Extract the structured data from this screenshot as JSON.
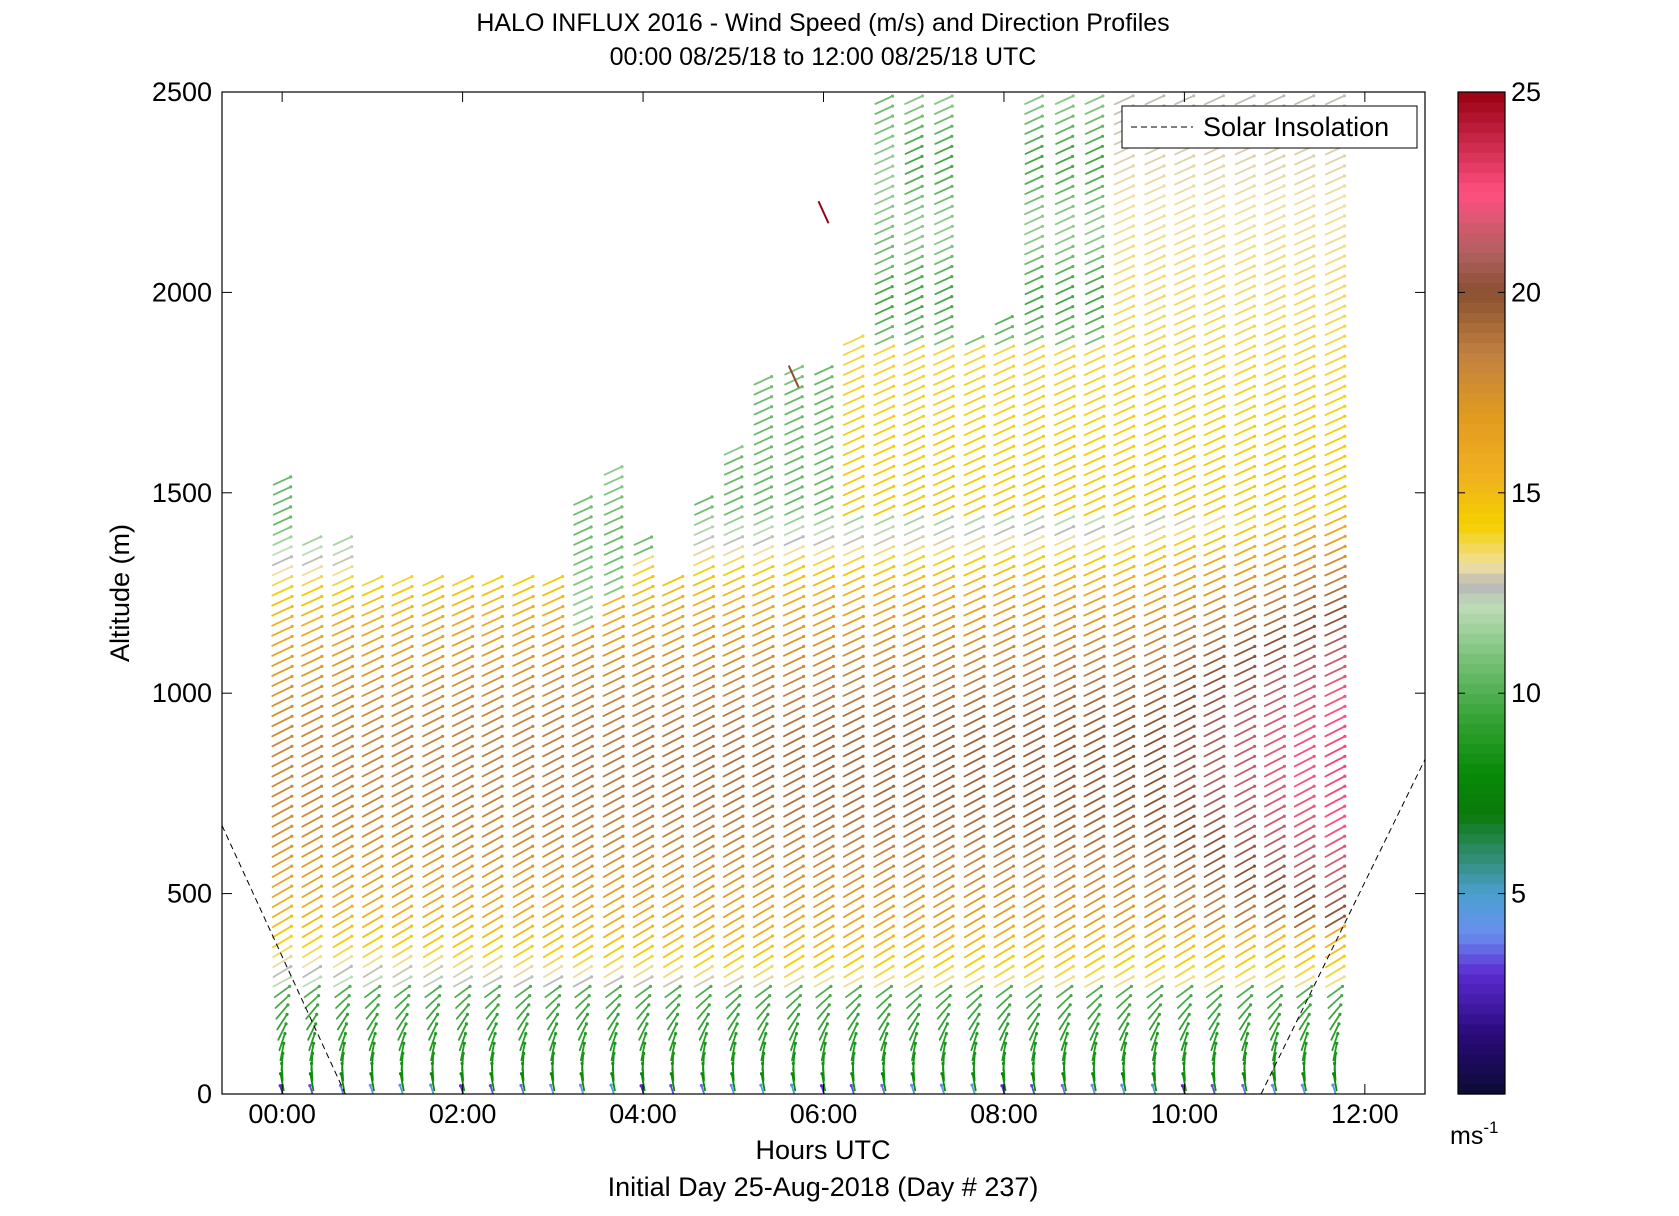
{
  "chart_data": {
    "type": "wind-barb-profile",
    "title": "HALO INFLUX 2016 - Wind Speed (m/s) and Direction Profiles",
    "subtitle": "00:00 08/25/18 to 12:00 08/25/18  UTC",
    "xlabel": "Hours UTC",
    "ylabel": "Altitude (m)",
    "footer": "Initial Day 25-Aug-2018 (Day # 237)",
    "xlim": [
      -0.6667,
      12.6667
    ],
    "ylim": [
      0,
      2500
    ],
    "x_ticks": [
      {
        "value": 0,
        "label": "00:00"
      },
      {
        "value": 2,
        "label": "02:00"
      },
      {
        "value": 4,
        "label": "04:00"
      },
      {
        "value": 6,
        "label": "06:00"
      },
      {
        "value": 8,
        "label": "08:00"
      },
      {
        "value": 10,
        "label": "10:00"
      },
      {
        "value": 12,
        "label": "12:00"
      }
    ],
    "y_ticks": [
      0,
      500,
      1000,
      1500,
      2000,
      2500
    ],
    "legend": {
      "label": "Solar Insolation",
      "placement": "top-right"
    },
    "colorbar": {
      "min": 0,
      "max": 25,
      "ticks": [
        5,
        10,
        15,
        20,
        25
      ],
      "unit_label": "ms",
      "unit_exponent": "-1",
      "colors": [
        {
          "v": 0,
          "c": "#0b0b33"
        },
        {
          "v": 1.5,
          "c": "#2a0a7a"
        },
        {
          "v": 3,
          "c": "#5a2bd0"
        },
        {
          "v": 4,
          "c": "#6a8ef0"
        },
        {
          "v": 5,
          "c": "#4aa0d0"
        },
        {
          "v": 6,
          "c": "#2e8b6a"
        },
        {
          "v": 7,
          "c": "#0a7a0a"
        },
        {
          "v": 8,
          "c": "#078a07"
        },
        {
          "v": 9.5,
          "c": "#3aa53a"
        },
        {
          "v": 11,
          "c": "#7fc47f"
        },
        {
          "v": 12.2,
          "c": "#c0dcb8"
        },
        {
          "v": 12.7,
          "c": "#b8b8b8"
        },
        {
          "v": 13.2,
          "c": "#f0e0a0"
        },
        {
          "v": 14.2,
          "c": "#f4d000"
        },
        {
          "v": 15.5,
          "c": "#f0b020"
        },
        {
          "v": 17,
          "c": "#e09a20"
        },
        {
          "v": 18.5,
          "c": "#c08040"
        },
        {
          "v": 20,
          "c": "#8a5030"
        },
        {
          "v": 21,
          "c": "#b06060"
        },
        {
          "v": 22.5,
          "c": "#ff5080"
        },
        {
          "v": 24,
          "c": "#c02040"
        },
        {
          "v": 25,
          "c": "#9a0010"
        }
      ]
    },
    "solar_insolation": [
      {
        "x": [
          -0.6667,
          0.7
        ],
        "y": [
          670,
          0
        ]
      },
      {
        "x": [
          10.85,
          12.6667
        ],
        "y": [
          0,
          835
        ]
      }
    ],
    "profiles": [
      {
        "t": 0.0,
        "top": 1530
      },
      {
        "t": 0.33,
        "top": 1400
      },
      {
        "t": 0.67,
        "top": 1400
      },
      {
        "t": 1.0,
        "top": 1280
      },
      {
        "t": 1.33,
        "top": 1280
      },
      {
        "t": 1.67,
        "top": 1280
      },
      {
        "t": 2.0,
        "top": 1280
      },
      {
        "t": 2.33,
        "top": 1280
      },
      {
        "t": 2.67,
        "top": 1280
      },
      {
        "t": 3.0,
        "top": 1280
      },
      {
        "t": 3.33,
        "top": 1500
      },
      {
        "t": 3.67,
        "top": 1560
      },
      {
        "t": 4.0,
        "top": 1400
      },
      {
        "t": 4.33,
        "top": 1300
      },
      {
        "t": 4.67,
        "top": 1480
      },
      {
        "t": 5.0,
        "top": 1620
      },
      {
        "t": 5.33,
        "top": 1780
      },
      {
        "t": 5.67,
        "top": 1810
      },
      {
        "t": 6.0,
        "top": 1810
      },
      {
        "t": 6.33,
        "top": 1900
      },
      {
        "t": 6.67,
        "top": 2480
      },
      {
        "t": 7.0,
        "top": 2490
      },
      {
        "t": 7.33,
        "top": 2490
      },
      {
        "t": 7.67,
        "top": 1900
      },
      {
        "t": 8.0,
        "top": 1950
      },
      {
        "t": 8.33,
        "top": 2490
      },
      {
        "t": 8.67,
        "top": 2490
      },
      {
        "t": 9.0,
        "top": 2490
      },
      {
        "t": 9.33,
        "top": 2490
      },
      {
        "t": 9.67,
        "top": 2490
      },
      {
        "t": 10.0,
        "top": 2490
      },
      {
        "t": 10.33,
        "top": 2490
      },
      {
        "t": 10.67,
        "top": 2490
      },
      {
        "t": 11.0,
        "top": 2490
      },
      {
        "t": 11.33,
        "top": 2490
      },
      {
        "t": 11.67,
        "top": 2490
      }
    ],
    "isolated_vectors": [
      {
        "t": 6.0,
        "alt": 2200,
        "speed": 25
      },
      {
        "t": 5.67,
        "alt": 1790,
        "speed": 20
      }
    ],
    "altitude_step": 25
  }
}
